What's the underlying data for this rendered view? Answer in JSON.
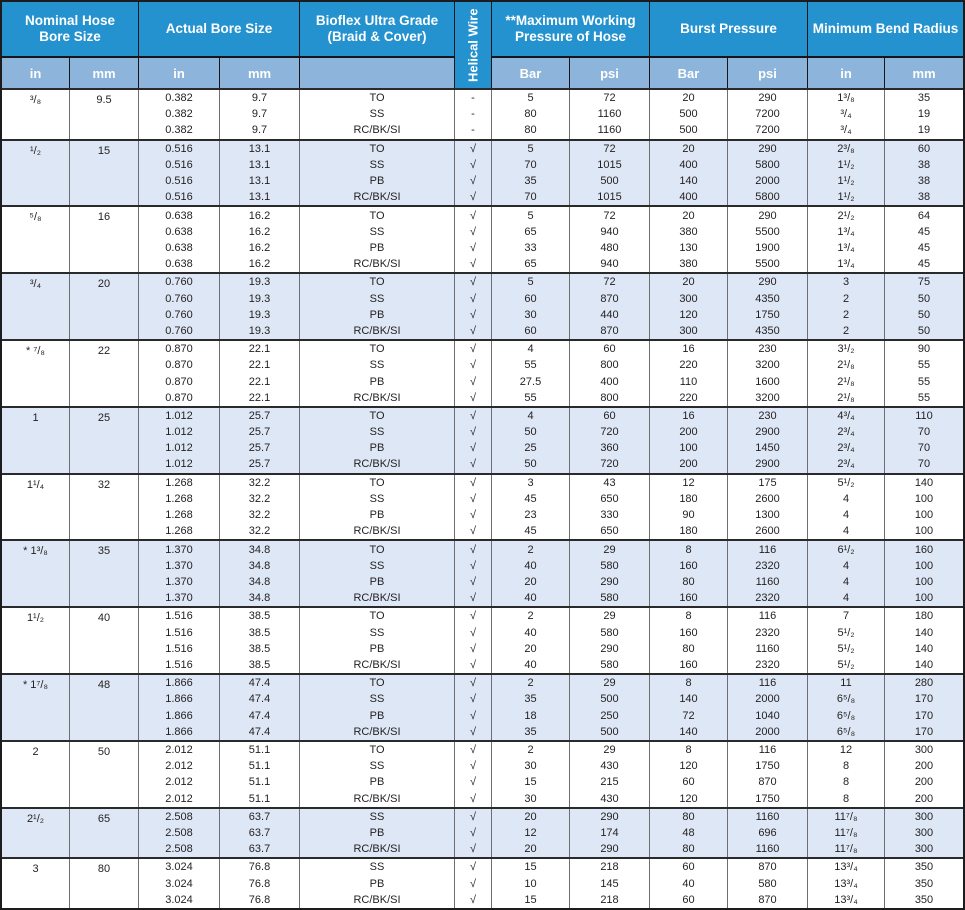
{
  "colors": {
    "header_blue": "#2392ce",
    "subheader_blue": "#8db4da",
    "row_shaded_blue": "#dde7f5",
    "border_dark": "#1c1c1e",
    "grid_gray": "#6d6e71",
    "text": "#231f20"
  },
  "table": {
    "header": {
      "groups": [
        {
          "label": "Nominal Hose\nBore Size",
          "subs": [
            "in",
            "mm"
          ]
        },
        {
          "label": "Actual Bore Size",
          "subs": [
            "in",
            "mm"
          ]
        },
        {
          "label": "Bioflex Ultra Grade\n(Braid & Cover)",
          "subs": [
            ""
          ]
        },
        {
          "label": "Helical Wire"
        },
        {
          "label": "**Maximum Working\nPressure of Hose",
          "subs": [
            "Bar",
            "psi"
          ]
        },
        {
          "label": "Burst Pressure",
          "subs": [
            "Bar",
            "psi"
          ]
        },
        {
          "label": "Minimum Bend Radius",
          "subs": [
            "in",
            "mm"
          ]
        }
      ]
    },
    "rows": [
      {
        "nominal_in": "³/₈",
        "nominal_mm": "9.5",
        "shaded": false,
        "lines": {
          "actual_in": [
            "0.382",
            "0.382",
            "0.382"
          ],
          "actual_mm": [
            "9.7",
            "9.7",
            "9.7"
          ],
          "grade": [
            "TO",
            "SS",
            "RC/BK/SI"
          ],
          "helical": [
            "-",
            "-",
            "-"
          ],
          "mwp_bar": [
            "5",
            "80",
            "80"
          ],
          "mwp_psi": [
            "72",
            "1160",
            "1160"
          ],
          "burst_bar": [
            "20",
            "500",
            "500"
          ],
          "burst_psi": [
            "290",
            "7200",
            "7200"
          ],
          "bend_in": [
            "1³/₈",
            "³/₄",
            "³/₄"
          ],
          "bend_mm": [
            "35",
            "19",
            "19"
          ]
        }
      },
      {
        "nominal_in": "¹/₂",
        "nominal_mm": "15",
        "shaded": true,
        "lines": {
          "actual_in": [
            "0.516",
            "0.516",
            "0.516",
            "0.516"
          ],
          "actual_mm": [
            "13.1",
            "13.1",
            "13.1",
            "13.1"
          ],
          "grade": [
            "TO",
            "SS",
            "PB",
            "RC/BK/SI"
          ],
          "helical": [
            "√",
            "√",
            "√",
            "√"
          ],
          "mwp_bar": [
            "5",
            "70",
            "35",
            "70"
          ],
          "mwp_psi": [
            "72",
            "1015",
            "500",
            "1015"
          ],
          "burst_bar": [
            "20",
            "400",
            "140",
            "400"
          ],
          "burst_psi": [
            "290",
            "5800",
            "2000",
            "5800"
          ],
          "bend_in": [
            "2³/₈",
            "1¹/₂",
            "1¹/₂",
            "1¹/₂"
          ],
          "bend_mm": [
            "60",
            "38",
            "38",
            "38"
          ]
        }
      },
      {
        "nominal_in": "⁵/₈",
        "nominal_mm": "16",
        "shaded": false,
        "lines": {
          "actual_in": [
            "0.638",
            "0.638",
            "0.638",
            "0.638"
          ],
          "actual_mm": [
            "16.2",
            "16.2",
            "16.2",
            "16.2"
          ],
          "grade": [
            "TO",
            "SS",
            "PB",
            "RC/BK/SI"
          ],
          "helical": [
            "√",
            "√",
            "√",
            "√"
          ],
          "mwp_bar": [
            "5",
            "65",
            "33",
            "65"
          ],
          "mwp_psi": [
            "72",
            "940",
            "480",
            "940"
          ],
          "burst_bar": [
            "20",
            "380",
            "130",
            "380"
          ],
          "burst_psi": [
            "290",
            "5500",
            "1900",
            "5500"
          ],
          "bend_in": [
            "2¹/₂",
            "1³/₄",
            "1³/₄",
            "1³/₄"
          ],
          "bend_mm": [
            "64",
            "45",
            "45",
            "45"
          ]
        }
      },
      {
        "nominal_in": "³/₄",
        "nominal_mm": "20",
        "shaded": true,
        "lines": {
          "actual_in": [
            "0.760",
            "0.760",
            "0.760",
            "0.760"
          ],
          "actual_mm": [
            "19.3",
            "19.3",
            "19.3",
            "19.3"
          ],
          "grade": [
            "TO",
            "SS",
            "PB",
            "RC/BK/SI"
          ],
          "helical": [
            "√",
            "√",
            "√",
            "√"
          ],
          "mwp_bar": [
            "5",
            "60",
            "30",
            "60"
          ],
          "mwp_psi": [
            "72",
            "870",
            "440",
            "870"
          ],
          "burst_bar": [
            "20",
            "300",
            "120",
            "300"
          ],
          "burst_psi": [
            "290",
            "4350",
            "1750",
            "4350"
          ],
          "bend_in": [
            "3",
            "2",
            "2",
            "2"
          ],
          "bend_mm": [
            "75",
            "50",
            "50",
            "50"
          ]
        }
      },
      {
        "nominal_in": "* ⁷/₈",
        "nominal_mm": "22",
        "shaded": false,
        "lines": {
          "actual_in": [
            "0.870",
            "0.870",
            "0.870",
            "0.870"
          ],
          "actual_mm": [
            "22.1",
            "22.1",
            "22.1",
            "22.1"
          ],
          "grade": [
            "TO",
            "SS",
            "PB",
            "RC/BK/SI"
          ],
          "helical": [
            "√",
            "√",
            "√",
            "√"
          ],
          "mwp_bar": [
            "4",
            "55",
            "27.5",
            "55"
          ],
          "mwp_psi": [
            "60",
            "800",
            "400",
            "800"
          ],
          "burst_bar": [
            "16",
            "220",
            "110",
            "220"
          ],
          "burst_psi": [
            "230",
            "3200",
            "1600",
            "3200"
          ],
          "bend_in": [
            "3¹/₂",
            "2¹/₈",
            "2¹/₈",
            "2¹/₈"
          ],
          "bend_mm": [
            "90",
            "55",
            "55",
            "55"
          ]
        }
      },
      {
        "nominal_in": "1",
        "nominal_mm": "25",
        "shaded": true,
        "lines": {
          "actual_in": [
            "1.012",
            "1.012",
            "1.012",
            "1.012"
          ],
          "actual_mm": [
            "25.7",
            "25.7",
            "25.7",
            "25.7"
          ],
          "grade": [
            "TO",
            "SS",
            "PB",
            "RC/BK/SI"
          ],
          "helical": [
            "√",
            "√",
            "√",
            "√"
          ],
          "mwp_bar": [
            "4",
            "50",
            "25",
            "50"
          ],
          "mwp_psi": [
            "60",
            "720",
            "360",
            "720"
          ],
          "burst_bar": [
            "16",
            "200",
            "100",
            "200"
          ],
          "burst_psi": [
            "230",
            "2900",
            "1450",
            "2900"
          ],
          "bend_in": [
            "4³/₄",
            "2³/₄",
            "2³/₄",
            "2³/₄"
          ],
          "bend_mm": [
            "110",
            "70",
            "70",
            "70"
          ]
        }
      },
      {
        "nominal_in": "1¹/₄",
        "nominal_mm": "32",
        "shaded": false,
        "lines": {
          "actual_in": [
            "1.268",
            "1.268",
            "1.268",
            "1.268"
          ],
          "actual_mm": [
            "32.2",
            "32.2",
            "32.2",
            "32.2"
          ],
          "grade": [
            "TO",
            "SS",
            "PB",
            "RC/BK/SI"
          ],
          "helical": [
            "√",
            "√",
            "√",
            "√"
          ],
          "mwp_bar": [
            "3",
            "45",
            "23",
            "45"
          ],
          "mwp_psi": [
            "43",
            "650",
            "330",
            "650"
          ],
          "burst_bar": [
            "12",
            "180",
            "90",
            "180"
          ],
          "burst_psi": [
            "175",
            "2600",
            "1300",
            "2600"
          ],
          "bend_in": [
            "5¹/₂",
            "4",
            "4",
            "4"
          ],
          "bend_mm": [
            "140",
            "100",
            "100",
            "100"
          ]
        }
      },
      {
        "nominal_in": "* 1³/₈",
        "nominal_mm": "35",
        "shaded": true,
        "lines": {
          "actual_in": [
            "1.370",
            "1.370",
            "1.370",
            "1.370"
          ],
          "actual_mm": [
            "34.8",
            "34.8",
            "34.8",
            "34.8"
          ],
          "grade": [
            "TO",
            "SS",
            "PB",
            "RC/BK/SI"
          ],
          "helical": [
            "√",
            "√",
            "√",
            "√"
          ],
          "mwp_bar": [
            "2",
            "40",
            "20",
            "40"
          ],
          "mwp_psi": [
            "29",
            "580",
            "290",
            "580"
          ],
          "burst_bar": [
            "8",
            "160",
            "80",
            "160"
          ],
          "burst_psi": [
            "116",
            "2320",
            "1160",
            "2320"
          ],
          "bend_in": [
            "6¹/₂",
            "4",
            "4",
            "4"
          ],
          "bend_mm": [
            "160",
            "100",
            "100",
            "100"
          ]
        }
      },
      {
        "nominal_in": "1¹/₂",
        "nominal_mm": "40",
        "shaded": false,
        "lines": {
          "actual_in": [
            "1.516",
            "1.516",
            "1.516",
            "1.516"
          ],
          "actual_mm": [
            "38.5",
            "38.5",
            "38.5",
            "38.5"
          ],
          "grade": [
            "TO",
            "SS",
            "PB",
            "RC/BK/SI"
          ],
          "helical": [
            "√",
            "√",
            "√",
            "√"
          ],
          "mwp_bar": [
            "2",
            "40",
            "20",
            "40"
          ],
          "mwp_psi": [
            "29",
            "580",
            "290",
            "580"
          ],
          "burst_bar": [
            "8",
            "160",
            "80",
            "160"
          ],
          "burst_psi": [
            "116",
            "2320",
            "1160",
            "2320"
          ],
          "bend_in": [
            "7",
            "5¹/₂",
            "5¹/₂",
            "5¹/₂"
          ],
          "bend_mm": [
            "180",
            "140",
            "140",
            "140"
          ]
        }
      },
      {
        "nominal_in": "* 1⁷/₈",
        "nominal_mm": "48",
        "shaded": true,
        "lines": {
          "actual_in": [
            "1.866",
            "1.866",
            "1.866",
            "1.866"
          ],
          "actual_mm": [
            "47.4",
            "47.4",
            "47.4",
            "47.4"
          ],
          "grade": [
            "TO",
            "SS",
            "PB",
            "RC/BK/SI"
          ],
          "helical": [
            "√",
            "√",
            "√",
            "√"
          ],
          "mwp_bar": [
            "2",
            "35",
            "18",
            "35"
          ],
          "mwp_psi": [
            "29",
            "500",
            "250",
            "500"
          ],
          "burst_bar": [
            "8",
            "140",
            "72",
            "140"
          ],
          "burst_psi": [
            "116",
            "2000",
            "1040",
            "2000"
          ],
          "bend_in": [
            "11",
            "6⁵/₈",
            "6⁵/₈",
            "6⁵/₈"
          ],
          "bend_mm": [
            "280",
            "170",
            "170",
            "170"
          ]
        }
      },
      {
        "nominal_in": "2",
        "nominal_mm": "50",
        "shaded": false,
        "lines": {
          "actual_in": [
            "2.012",
            "2.012",
            "2.012",
            "2.012"
          ],
          "actual_mm": [
            "51.1",
            "51.1",
            "51.1",
            "51.1"
          ],
          "grade": [
            "TO",
            "SS",
            "PB",
            "RC/BK/SI"
          ],
          "helical": [
            "√",
            "√",
            "√",
            "√"
          ],
          "mwp_bar": [
            "2",
            "30",
            "15",
            "30"
          ],
          "mwp_psi": [
            "29",
            "430",
            "215",
            "430"
          ],
          "burst_bar": [
            "8",
            "120",
            "60",
            "120"
          ],
          "burst_psi": [
            "116",
            "1750",
            "870",
            "1750"
          ],
          "bend_in": [
            "12",
            "8",
            "8",
            "8"
          ],
          "bend_mm": [
            "300",
            "200",
            "200",
            "200"
          ]
        }
      },
      {
        "nominal_in": "2¹/₂",
        "nominal_mm": "65",
        "shaded": true,
        "lines": {
          "actual_in": [
            "2.508",
            "2.508",
            "2.508"
          ],
          "actual_mm": [
            "63.7",
            "63.7",
            "63.7"
          ],
          "grade": [
            "SS",
            "PB",
            "RC/BK/SI"
          ],
          "helical": [
            "√",
            "√",
            "√"
          ],
          "mwp_bar": [
            "20",
            "12",
            "20"
          ],
          "mwp_psi": [
            "290",
            "174",
            "290"
          ],
          "burst_bar": [
            "80",
            "48",
            "80"
          ],
          "burst_psi": [
            "1160",
            "696",
            "1160"
          ],
          "bend_in": [
            "11⁷/₈",
            "11⁷/₈",
            "11⁷/₈"
          ],
          "bend_mm": [
            "300",
            "300",
            "300"
          ]
        }
      },
      {
        "nominal_in": "3",
        "nominal_mm": "80",
        "shaded": false,
        "lines": {
          "actual_in": [
            "3.024",
            "3.024",
            "3.024"
          ],
          "actual_mm": [
            "76.8",
            "76.8",
            "76.8"
          ],
          "grade": [
            "SS",
            "PB",
            "RC/BK/SI"
          ],
          "helical": [
            "√",
            "√",
            "√"
          ],
          "mwp_bar": [
            "15",
            "10",
            "15"
          ],
          "mwp_psi": [
            "218",
            "145",
            "218"
          ],
          "burst_bar": [
            "60",
            "40",
            "60"
          ],
          "burst_psi": [
            "870",
            "580",
            "870"
          ],
          "bend_in": [
            "13³/₄",
            "13³/₄",
            "13³/₄"
          ],
          "bend_mm": [
            "350",
            "350",
            "350"
          ]
        }
      }
    ]
  }
}
